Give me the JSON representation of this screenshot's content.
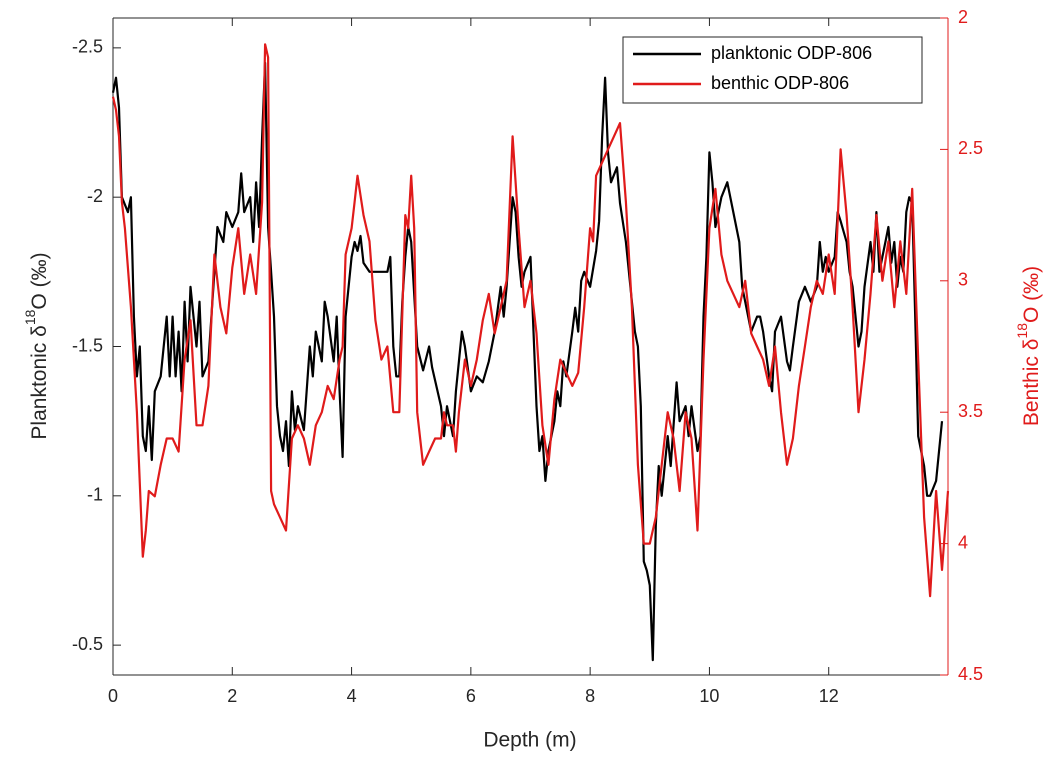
{
  "chart_data": {
    "type": "line",
    "xlabel": "Depth (m)",
    "ylabel": [
      "Planktonic δ",
      "18",
      "O (‰)"
    ],
    "y2label": [
      "Benthic δ",
      "18",
      "O (‰)"
    ],
    "xlim": [
      0,
      14
    ],
    "xticks": [
      0,
      2,
      4,
      6,
      8,
      10,
      12
    ],
    "ylim": [
      -2.6,
      -0.4
    ],
    "yticks": [
      -2.5,
      -2,
      -1.5,
      -1,
      -0.5
    ],
    "y_reverse": true,
    "y2lim": [
      2,
      4.5
    ],
    "y2ticks": [
      2,
      2.5,
      3,
      3.5,
      4,
      4.5
    ],
    "y2_reverse": true,
    "grid": false,
    "legend": "upper right",
    "series": [
      {
        "name": "planktonic ODP-806",
        "color": "#000000",
        "x": [
          0,
          0.05,
          0.1,
          0.15,
          0.25,
          0.3,
          0.35,
          0.4,
          0.45,
          0.5,
          0.55,
          0.6,
          0.65,
          0.7,
          0.8,
          0.9,
          0.95,
          1,
          1.05,
          1.1,
          1.15,
          1.2,
          1.25,
          1.3,
          1.4,
          1.45,
          1.5,
          1.6,
          1.7,
          1.75,
          1.85,
          1.9,
          2,
          2.1,
          2.15,
          2.2,
          2.3,
          2.35,
          2.4,
          2.45,
          2.5,
          2.55,
          2.6,
          2.65,
          2.7,
          2.75,
          2.8,
          2.85,
          2.9,
          2.95,
          3,
          3.05,
          3.1,
          3.2,
          3.3,
          3.35,
          3.4,
          3.5,
          3.55,
          3.6,
          3.7,
          3.75,
          3.8,
          3.85,
          3.9,
          4,
          4.05,
          4.1,
          4.15,
          4.2,
          4.3,
          4.5,
          4.6,
          4.65,
          4.7,
          4.75,
          4.8,
          4.85,
          4.9,
          4.95,
          5,
          5.1,
          5.2,
          5.3,
          5.35,
          5.5,
          5.55,
          5.6,
          5.7,
          5.75,
          5.85,
          5.9,
          6,
          6.1,
          6.2,
          6.3,
          6.4,
          6.5,
          6.55,
          6.6,
          6.7,
          6.75,
          6.8,
          6.85,
          6.9,
          7,
          7.05,
          7.1,
          7.15,
          7.2,
          7.25,
          7.3,
          7.4,
          7.45,
          7.5,
          7.55,
          7.6,
          7.7,
          7.75,
          7.8,
          7.85,
          7.9,
          8,
          8.1,
          8.15,
          8.2,
          8.25,
          8.3,
          8.35,
          8.45,
          8.5,
          8.6,
          8.7,
          8.75,
          8.8,
          8.85,
          8.9,
          8.95,
          9,
          9.05,
          9.1,
          9.15,
          9.2,
          9.3,
          9.35,
          9.45,
          9.5,
          9.6,
          9.65,
          9.7,
          9.8,
          9.85,
          9.9,
          9.95,
          10,
          10.05,
          10.1,
          10.2,
          10.3,
          10.4,
          10.5,
          10.55,
          10.6,
          10.7,
          10.8,
          10.85,
          10.9,
          11,
          11.05,
          11.1,
          11.2,
          11.3,
          11.35,
          11.4,
          11.5,
          11.6,
          11.7,
          11.8,
          11.85,
          11.9,
          11.95,
          12,
          12.1,
          12.15,
          12.2,
          12.3,
          12.35,
          12.4,
          12.5,
          12.55,
          12.6,
          12.7,
          12.75,
          12.8,
          12.85,
          12.9,
          13,
          13.05,
          13.1,
          13.15,
          13.2,
          13.25,
          13.3,
          13.35,
          13.4,
          13.45,
          13.5,
          13.6,
          13.65,
          13.7,
          13.8,
          13.9
        ],
        "values": [
          -2.35,
          -2.4,
          -2.3,
          -2.0,
          -1.95,
          -2.0,
          -1.6,
          -1.4,
          -1.5,
          -1.2,
          -1.15,
          -1.3,
          -1.12,
          -1.35,
          -1.4,
          -1.6,
          -1.4,
          -1.6,
          -1.4,
          -1.55,
          -1.35,
          -1.65,
          -1.45,
          -1.7,
          -1.5,
          -1.65,
          -1.4,
          -1.45,
          -1.75,
          -1.9,
          -1.85,
          -1.95,
          -1.9,
          -1.95,
          -2.08,
          -1.95,
          -2.0,
          -1.85,
          -2.05,
          -1.9,
          -2.2,
          -2.45,
          -1.9,
          -1.75,
          -1.6,
          -1.3,
          -1.2,
          -1.15,
          -1.25,
          -1.1,
          -1.35,
          -1.22,
          -1.3,
          -1.22,
          -1.5,
          -1.4,
          -1.55,
          -1.45,
          -1.65,
          -1.6,
          -1.45,
          -1.6,
          -1.35,
          -1.13,
          -1.6,
          -1.8,
          -1.85,
          -1.82,
          -1.87,
          -1.78,
          -1.75,
          -1.75,
          -1.75,
          -1.8,
          -1.5,
          -1.4,
          -1.4,
          -1.65,
          -1.8,
          -1.9,
          -1.85,
          -1.5,
          -1.42,
          -1.5,
          -1.43,
          -1.3,
          -1.2,
          -1.3,
          -1.2,
          -1.35,
          -1.55,
          -1.5,
          -1.35,
          -1.4,
          -1.38,
          -1.45,
          -1.55,
          -1.7,
          -1.6,
          -1.7,
          -2.0,
          -1.95,
          -1.8,
          -1.7,
          -1.75,
          -1.8,
          -1.55,
          -1.3,
          -1.15,
          -1.2,
          -1.05,
          -1.15,
          -1.25,
          -1.35,
          -1.3,
          -1.45,
          -1.4,
          -1.55,
          -1.63,
          -1.55,
          -1.72,
          -1.75,
          -1.7,
          -1.82,
          -1.92,
          -2.2,
          -2.4,
          -2.15,
          -2.05,
          -2.1,
          -1.98,
          -1.85,
          -1.65,
          -1.55,
          -1.5,
          -1.3,
          -0.78,
          -0.75,
          -0.7,
          -0.45,
          -0.9,
          -1.1,
          -1.0,
          -1.2,
          -1.1,
          -1.38,
          -1.25,
          -1.3,
          -1.2,
          -1.3,
          -1.15,
          -1.2,
          -1.6,
          -1.8,
          -2.15,
          -2.05,
          -1.9,
          -2.0,
          -2.05,
          -1.95,
          -1.85,
          -1.7,
          -1.65,
          -1.55,
          -1.6,
          -1.6,
          -1.55,
          -1.4,
          -1.35,
          -1.55,
          -1.6,
          -1.45,
          -1.42,
          -1.5,
          -1.65,
          -1.7,
          -1.65,
          -1.7,
          -1.85,
          -1.75,
          -1.8,
          -1.75,
          -1.8,
          -1.95,
          -1.92,
          -1.85,
          -1.75,
          -1.7,
          -1.5,
          -1.55,
          -1.7,
          -1.85,
          -1.75,
          -1.95,
          -1.75,
          -1.8,
          -1.9,
          -1.78,
          -1.85,
          -1.7,
          -1.8,
          -1.75,
          -1.95,
          -2.0,
          -1.98,
          -1.6,
          -1.2,
          -1.1,
          -1.0,
          -1.0,
          -1.05,
          -1.25
        ]
      },
      {
        "name": "benthic ODP-806",
        "color": "#e01b1b",
        "axis": "y2",
        "x": [
          0,
          0.05,
          0.1,
          0.15,
          0.2,
          0.3,
          0.4,
          0.5,
          0.55,
          0.6,
          0.7,
          0.8,
          0.9,
          1,
          1.1,
          1.2,
          1.3,
          1.4,
          1.5,
          1.6,
          1.7,
          1.8,
          1.9,
          2,
          2.1,
          2.2,
          2.3,
          2.4,
          2.5,
          2.55,
          2.6,
          2.65,
          2.7,
          2.8,
          2.9,
          3,
          3.1,
          3.2,
          3.3,
          3.4,
          3.5,
          3.6,
          3.7,
          3.8,
          3.85,
          3.9,
          4,
          4.05,
          4.1,
          4.2,
          4.3,
          4.4,
          4.5,
          4.6,
          4.7,
          4.8,
          4.9,
          4.95,
          5,
          5.05,
          5.1,
          5.2,
          5.3,
          5.4,
          5.5,
          5.55,
          5.6,
          5.7,
          5.75,
          5.8,
          5.9,
          6,
          6.1,
          6.2,
          6.3,
          6.4,
          6.5,
          6.6,
          6.7,
          6.8,
          6.9,
          7,
          7.1,
          7.2,
          7.3,
          7.4,
          7.5,
          7.6,
          7.7,
          7.8,
          7.9,
          8,
          8.05,
          8.1,
          8.2,
          8.3,
          8.4,
          8.5,
          8.6,
          8.7,
          8.8,
          8.9,
          9,
          9.1,
          9.2,
          9.3,
          9.4,
          9.5,
          9.6,
          9.7,
          9.8,
          9.9,
          10,
          10.1,
          10.2,
          10.3,
          10.4,
          10.5,
          10.6,
          10.7,
          10.8,
          10.9,
          11,
          11.1,
          11.2,
          11.3,
          11.4,
          11.5,
          11.6,
          11.7,
          11.8,
          11.9,
          12,
          12.1,
          12.2,
          12.3,
          12.4,
          12.5,
          12.6,
          12.7,
          12.8,
          12.9,
          13,
          13.1,
          13.2,
          13.3,
          13.4,
          13.5,
          13.6,
          13.7,
          13.8,
          13.9,
          14
        ],
        "values": [
          2.3,
          2.35,
          2.45,
          2.7,
          2.8,
          3.1,
          3.5,
          4.05,
          3.95,
          3.8,
          3.82,
          3.7,
          3.6,
          3.6,
          3.65,
          3.3,
          3.15,
          3.55,
          3.55,
          3.4,
          2.9,
          3.1,
          3.2,
          2.95,
          2.8,
          3.05,
          2.9,
          3.05,
          2.7,
          2.1,
          2.15,
          3.8,
          3.85,
          3.9,
          3.95,
          3.6,
          3.55,
          3.6,
          3.7,
          3.55,
          3.5,
          3.4,
          3.45,
          3.3,
          3.25,
          2.9,
          2.8,
          2.7,
          2.6,
          2.75,
          2.85,
          3.15,
          3.3,
          3.25,
          3.5,
          3.5,
          2.75,
          2.8,
          2.6,
          2.8,
          3.5,
          3.7,
          3.65,
          3.6,
          3.6,
          3.5,
          3.55,
          3.55,
          3.65,
          3.5,
          3.3,
          3.4,
          3.3,
          3.15,
          3.05,
          3.2,
          3.1,
          3.0,
          2.45,
          2.8,
          3.1,
          3.0,
          3.2,
          3.55,
          3.7,
          3.45,
          3.3,
          3.35,
          3.4,
          3.35,
          3.1,
          2.8,
          2.85,
          2.6,
          2.55,
          2.5,
          2.45,
          2.4,
          2.7,
          3.1,
          3.7,
          4.0,
          4.0,
          3.9,
          3.7,
          3.5,
          3.6,
          3.8,
          3.5,
          3.6,
          3.95,
          3.3,
          2.8,
          2.65,
          2.9,
          3.0,
          3.05,
          3.1,
          3.0,
          3.2,
          3.25,
          3.3,
          3.4,
          3.25,
          3.5,
          3.7,
          3.6,
          3.4,
          3.25,
          3.1,
          3.0,
          3.05,
          2.9,
          3.05,
          2.5,
          2.75,
          3.1,
          3.5,
          3.3,
          3.05,
          2.75,
          3.0,
          2.85,
          3.1,
          2.85,
          3.05,
          2.65,
          3.3,
          3.9,
          4.2,
          3.8,
          4.1,
          3.8
        ]
      }
    ]
  }
}
